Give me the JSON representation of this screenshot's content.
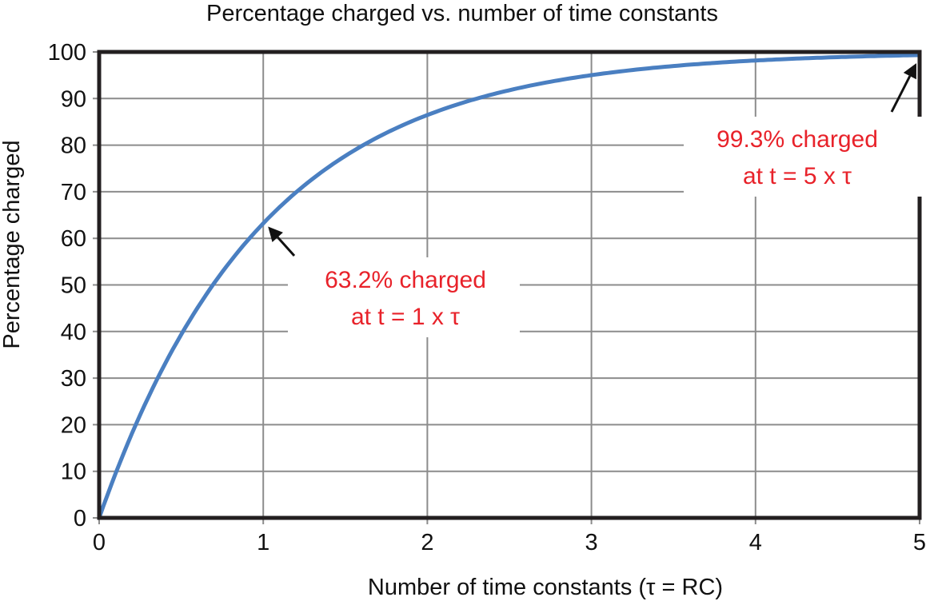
{
  "chart_data": {
    "type": "line",
    "title": "Percentage charged vs. number of time constants",
    "xlabel": "Number of time constants (τ = RC)",
    "ylabel": "Percentage charged",
    "xlim": [
      0,
      5
    ],
    "ylim": [
      0,
      100
    ],
    "x_ticks": [
      "0",
      "1",
      "2",
      "3",
      "4",
      "5"
    ],
    "y_ticks": [
      "0",
      "10",
      "20",
      "30",
      "40",
      "50",
      "60",
      "70",
      "80",
      "90",
      "100"
    ],
    "grid": true,
    "series": [
      {
        "function": "100*(1-exp(-t))",
        "color": "#4a7fc1",
        "x": [
          0,
          0.5,
          1,
          1.5,
          2,
          2.5,
          3,
          3.5,
          4,
          4.5,
          5
        ],
        "y": [
          0,
          39.3,
          63.2,
          77.7,
          86.5,
          91.8,
          95.0,
          97.0,
          98.2,
          98.9,
          99.3
        ]
      }
    ],
    "annotations": [
      {
        "line1": "63.2% charged",
        "line2": "at  t = 1 x τ",
        "x": 1,
        "y": 63.2,
        "color": "#e8222a"
      },
      {
        "line1": "99.3% charged",
        "line2": "at  t = 5 x τ",
        "x": 5,
        "y": 99.3,
        "color": "#e8222a"
      }
    ]
  }
}
